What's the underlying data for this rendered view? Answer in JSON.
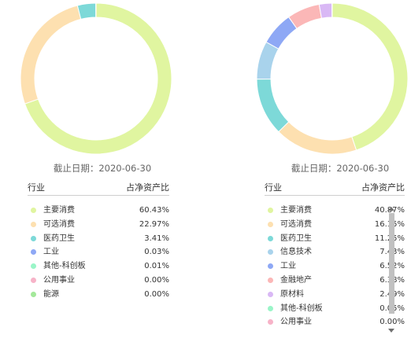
{
  "left": {
    "date_label": "截止日期：2020-06-30",
    "table_header": {
      "industry": "行业",
      "ratio": "占净资产比"
    },
    "chart_data": {
      "type": "pie",
      "series": [
        {
          "name": "主要消费",
          "value": 60.43,
          "color": "#e0f5a0"
        },
        {
          "name": "可选消费",
          "value": 22.97,
          "color": "#fde0b0"
        },
        {
          "name": "医药卫生",
          "value": 3.41,
          "color": "#7dd9d8"
        },
        {
          "name": "工业",
          "value": 0.03,
          "color": "#8ea8f5"
        },
        {
          "name": "其他-科创板",
          "value": 0.01,
          "color": "#9af5c8"
        },
        {
          "name": "公用事业",
          "value": 0.0,
          "color": "#f7b3c8"
        },
        {
          "name": "能源",
          "value": 0.0,
          "color": "#a3e89a"
        }
      ],
      "percent_labels": [
        "60.43%",
        "22.97%",
        "3.41%",
        "0.03%",
        "0.01%",
        "0.00%",
        "0.00%"
      ]
    }
  },
  "right": {
    "date_label": "截止日期：2020-06-30",
    "table_header": {
      "industry": "行业",
      "ratio": "占净资产比"
    },
    "chart_data": {
      "type": "pie",
      "series": [
        {
          "name": "主要消费",
          "value": 40.87,
          "color": "#e0f5a0"
        },
        {
          "name": "可选消费",
          "value": 16.15,
          "color": "#fde0b0"
        },
        {
          "name": "医药卫生",
          "value": 11.25,
          "color": "#7dd9d8"
        },
        {
          "name": "信息技术",
          "value": 7.43,
          "color": "#a9d3ec"
        },
        {
          "name": "工业",
          "value": 6.52,
          "color": "#8ea8f5"
        },
        {
          "name": "金融地产",
          "value": 6.38,
          "color": "#fbb7b7"
        },
        {
          "name": "原材料",
          "value": 2.49,
          "color": "#d9b8f5"
        },
        {
          "name": "其他-科创板",
          "value": 0.05,
          "color": "#9af5c8"
        },
        {
          "name": "公用事业",
          "value": 0.0,
          "color": "#f7b3c8"
        }
      ],
      "percent_labels": [
        "40.87%",
        "16.15%",
        "11.25%",
        "7.43%",
        "6.52%",
        "6.38%",
        "2.49%",
        "0.05%",
        "0.00%"
      ]
    }
  }
}
